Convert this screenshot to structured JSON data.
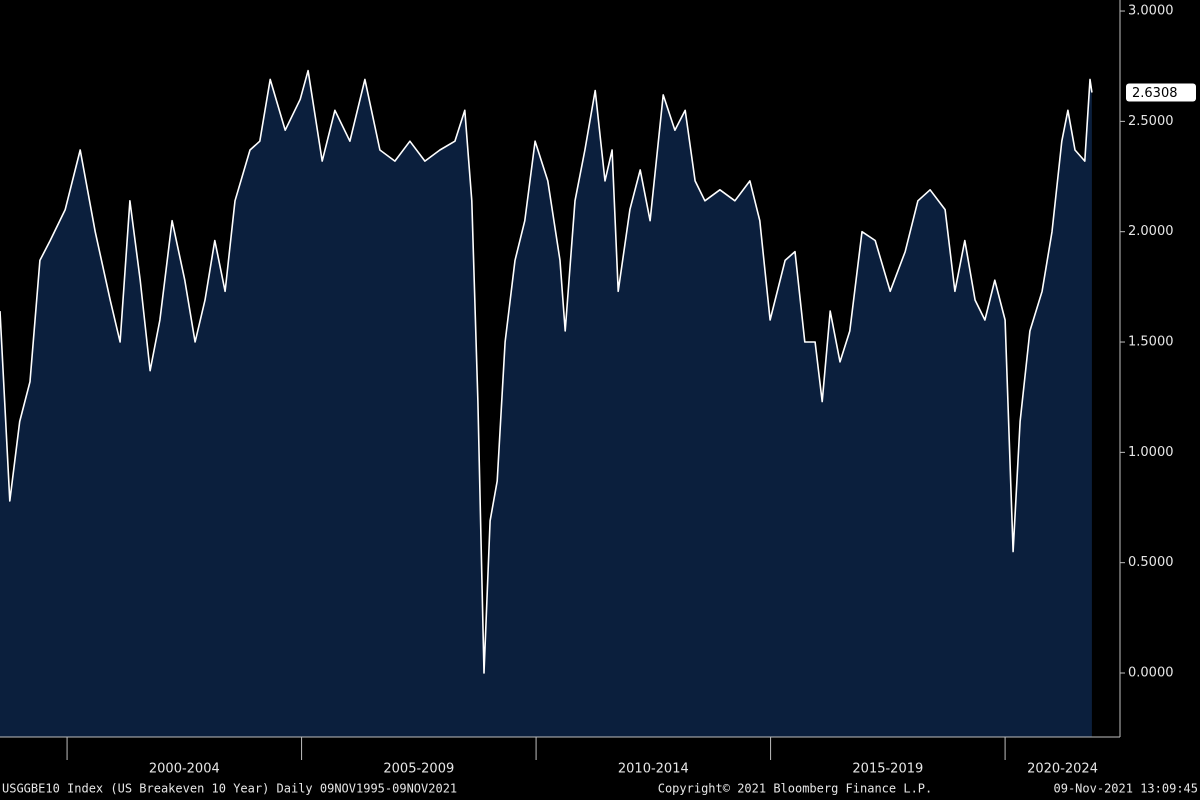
{
  "chart_data": {
    "type": "area",
    "x": [
      1998.57,
      1998.78,
      1998.99,
      1999.21,
      1999.42,
      1999.64,
      1999.96,
      2000.28,
      2000.6,
      2000.92,
      2001.13,
      2001.34,
      2001.56,
      2001.77,
      2001.98,
      2002.24,
      2002.51,
      2002.73,
      2002.94,
      2003.15,
      2003.37,
      2003.58,
      2003.9,
      2004.11,
      2004.33,
      2004.65,
      2004.97,
      2005.14,
      2005.44,
      2005.71,
      2006.03,
      2006.35,
      2006.67,
      2006.99,
      2007.31,
      2007.63,
      2007.95,
      2008.27,
      2008.48,
      2008.63,
      2008.76,
      2008.89,
      2009.02,
      2009.17,
      2009.34,
      2009.55,
      2009.76,
      2009.98,
      2010.25,
      2010.51,
      2010.62,
      2010.83,
      2011.04,
      2011.26,
      2011.47,
      2011.62,
      2011.75,
      2012.0,
      2012.22,
      2012.43,
      2012.71,
      2012.96,
      2013.18,
      2013.39,
      2013.6,
      2013.92,
      2014.24,
      2014.56,
      2014.77,
      2014.99,
      2015.31,
      2015.52,
      2015.73,
      2015.95,
      2016.1,
      2016.27,
      2016.48,
      2016.69,
      2016.95,
      2017.23,
      2017.55,
      2017.87,
      2018.14,
      2018.4,
      2018.72,
      2018.93,
      2019.14,
      2019.36,
      2019.57,
      2019.78,
      2020.0,
      2020.17,
      2020.32,
      2020.53,
      2020.79,
      2021.0,
      2021.21,
      2021.34,
      2021.49,
      2021.7,
      2021.81,
      2021.85
    ],
    "series": [
      {
        "name": "USGGBE10 Index",
        "color": "#ffffff",
        "fill": "#0b1f3d",
        "values": [
          1.64,
          0.78,
          1.14,
          1.32,
          1.87,
          1.96,
          2.1,
          2.37,
          2.0,
          1.69,
          1.5,
          2.14,
          1.78,
          1.37,
          1.6,
          2.05,
          1.78,
          1.5,
          1.69,
          1.96,
          1.73,
          2.14,
          2.37,
          2.41,
          2.69,
          2.46,
          2.6,
          2.73,
          2.32,
          2.55,
          2.41,
          2.69,
          2.37,
          2.32,
          2.41,
          2.32,
          2.37,
          2.41,
          2.55,
          2.14,
          1.23,
          0.0,
          0.69,
          0.87,
          1.5,
          1.87,
          2.05,
          2.41,
          2.23,
          1.87,
          1.55,
          2.14,
          2.37,
          2.64,
          2.23,
          2.37,
          1.73,
          2.1,
          2.28,
          2.05,
          2.62,
          2.46,
          2.55,
          2.23,
          2.14,
          2.19,
          2.14,
          2.23,
          2.05,
          1.6,
          1.87,
          1.91,
          1.5,
          1.5,
          1.23,
          1.64,
          1.41,
          1.55,
          2.0,
          1.96,
          1.73,
          1.91,
          2.14,
          2.19,
          2.1,
          1.73,
          1.96,
          1.69,
          1.6,
          1.78,
          1.6,
          0.55,
          1.14,
          1.55,
          1.73,
          2.0,
          2.41,
          2.55,
          2.37,
          2.32,
          2.69,
          2.6308
        ]
      }
    ],
    "xlim": [
      1998.57,
      2022.45
    ],
    "ylim": [
      -0.29,
      3.05
    ],
    "yticks": [
      {
        "value": 0,
        "label": "0.0000"
      },
      {
        "value": 0.5,
        "label": "0.5000"
      },
      {
        "value": 1,
        "label": "1.0000"
      },
      {
        "value": 1.5,
        "label": "1.5000"
      },
      {
        "value": 2,
        "label": "2.0000"
      },
      {
        "value": 2.5,
        "label": "2.5000"
      },
      {
        "value": 3,
        "label": "3.0000"
      }
    ],
    "periods": [
      {
        "label": "2000-2004",
        "start": 2000,
        "end": 2005
      },
      {
        "label": "2005-2009",
        "start": 2005,
        "end": 2010
      },
      {
        "label": "2010-2014",
        "start": 2010,
        "end": 2015
      },
      {
        "label": "2015-2019",
        "start": 2015,
        "end": 2020
      },
      {
        "label": "2020-2024",
        "start": 2020,
        "end": 2022.45
      }
    ],
    "footer": [
      "USGGBE10 Index (US Breakeven 10 Year)  Daily 09NOV1995-09NOV2021",
      "Copyright© 2021 Bloomberg Finance L.P.",
      "09-Nov-2021 13:09:45"
    ]
  }
}
